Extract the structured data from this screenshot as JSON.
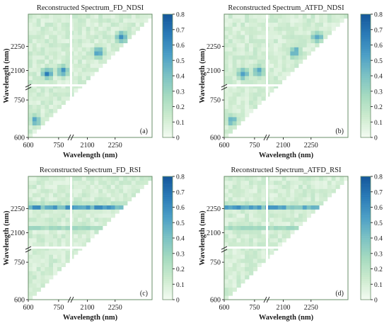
{
  "chart_data": [
    {
      "type": "heatmap",
      "title": "Reconstructed Spectrum_FD_NDSI",
      "panel_label": "(a)",
      "xlabel": "Wavelength (nm)",
      "ylabel": "Wavelength (nm)",
      "x_ticks": [
        "600",
        "750",
        "2100",
        "2250"
      ],
      "y_ticks": [
        "600",
        "750",
        "2100",
        "2250"
      ],
      "colorbar": {
        "ticks": [
          "0",
          "0.1",
          "0.2",
          "0.3",
          "0.4",
          "0.5",
          "0.6",
          "0.7",
          "0.8"
        ],
        "range": [
          0,
          0.8
        ],
        "colors": [
          "#f4fbf2",
          "#cdebcf",
          "#a6dbc0",
          "#7cc2c4",
          "#4c9fc6",
          "#2a7bb7",
          "#15579b"
        ]
      },
      "pattern": "ndsi",
      "hotspots": [
        {
          "x": 700,
          "y": 2140,
          "value": 0.72
        },
        {
          "x": 780,
          "y": 2150,
          "value": 0.7
        },
        {
          "x": 2170,
          "y": 2250,
          "value": 0.68
        },
        {
          "x": 2290,
          "y": 2330,
          "value": 0.66
        },
        {
          "x": 640,
          "y": 690,
          "value": 0.6
        }
      ]
    },
    {
      "type": "heatmap",
      "title": "Reconstructed Spectrum_ATFD_NDSI",
      "panel_label": "(b)",
      "xlabel": "Wavelength (nm)",
      "ylabel": "Wavelength (nm)",
      "x_ticks": [
        "600",
        "750",
        "2100",
        "2250"
      ],
      "y_ticks": [
        "600",
        "750",
        "2100",
        "2250"
      ],
      "colorbar": {
        "ticks": [
          "0",
          "0.1",
          "0.2",
          "0.3",
          "0.4",
          "0.5",
          "0.6",
          "0.7",
          "0.8"
        ],
        "range": [
          0,
          0.8
        ],
        "colors": [
          "#f4fbf2",
          "#cdebcf",
          "#a6dbc0",
          "#7cc2c4",
          "#4c9fc6",
          "#2a7bb7",
          "#15579b"
        ]
      },
      "pattern": "ndsi",
      "hotspots": [
        {
          "x": 700,
          "y": 2140,
          "value": 0.7
        },
        {
          "x": 780,
          "y": 2150,
          "value": 0.68
        },
        {
          "x": 2170,
          "y": 2250,
          "value": 0.66
        },
        {
          "x": 2290,
          "y": 2330,
          "value": 0.64
        },
        {
          "x": 640,
          "y": 690,
          "value": 0.58
        }
      ]
    },
    {
      "type": "heatmap",
      "title": "Reconstructed Spectrum_FD_RSI",
      "panel_label": "(c)",
      "xlabel": "Wavelength (nm)",
      "ylabel": "Wavelength (nm)",
      "x_ticks": [
        "600",
        "750",
        "2100",
        "2250"
      ],
      "y_ticks": [
        "600",
        "750",
        "2100",
        "2250"
      ],
      "colorbar": {
        "ticks": [
          "0",
          "0.1",
          "0.2",
          "0.3",
          "0.4",
          "0.5",
          "0.6",
          "0.7",
          "0.8"
        ],
        "range": [
          0,
          0.8
        ],
        "colors": [
          "#f4fbf2",
          "#cdebcf",
          "#a6dbc0",
          "#7cc2c4",
          "#4c9fc6",
          "#2a7bb7",
          "#15579b"
        ]
      },
      "pattern": "rsi",
      "band_y": 2290,
      "band_value": 0.65
    },
    {
      "type": "heatmap",
      "title": "Reconstructed Spectrum_ATFD_RSI",
      "panel_label": "(d)",
      "xlabel": "Wavelength (nm)",
      "ylabel": "Wavelength (nm)",
      "x_ticks": [
        "600",
        "750",
        "2100",
        "2250"
      ],
      "y_ticks": [
        "600",
        "750",
        "2100",
        "2250"
      ],
      "colorbar": {
        "ticks": [
          "0",
          "0.1",
          "0.2",
          "0.3",
          "0.4",
          "0.5",
          "0.6",
          "0.7",
          "0.8"
        ],
        "range": [
          0,
          0.8
        ],
        "colors": [
          "#f4fbf2",
          "#cdebcf",
          "#a6dbc0",
          "#7cc2c4",
          "#4c9fc6",
          "#2a7bb7",
          "#15579b"
        ]
      },
      "pattern": "rsi",
      "band_y": 2290,
      "band_value": 0.62
    }
  ]
}
